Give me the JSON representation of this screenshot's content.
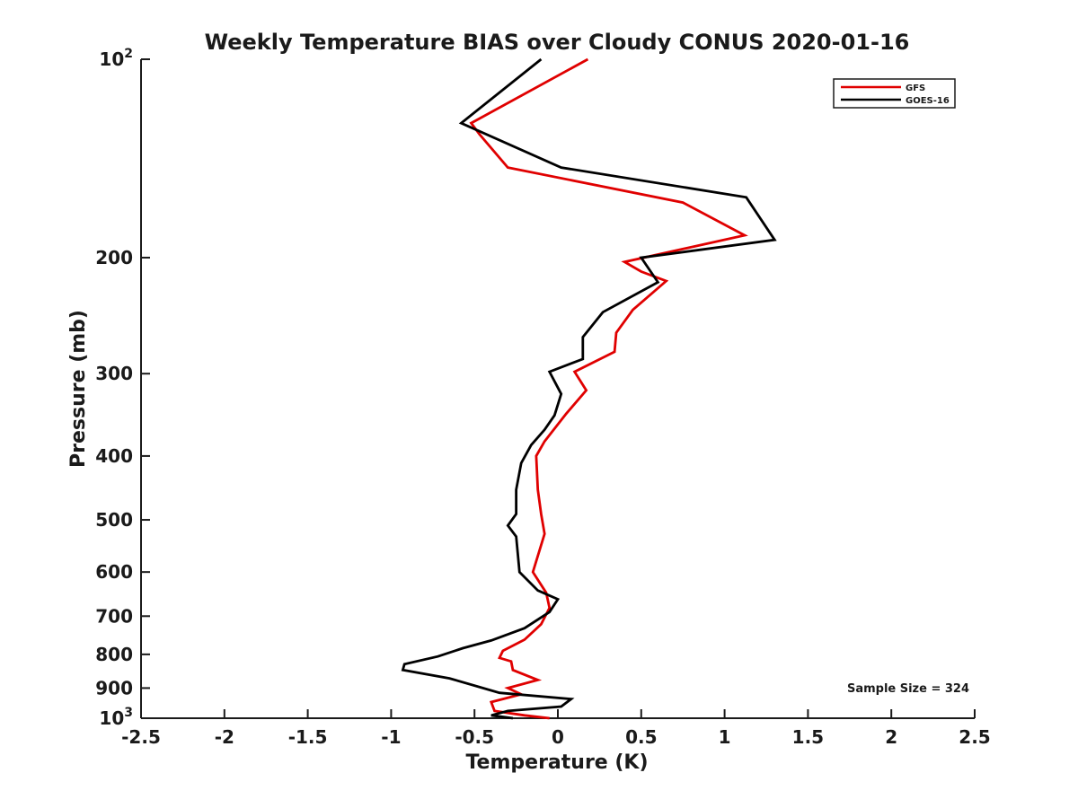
{
  "chart_data": {
    "type": "line",
    "title": "Weekly Temperature BIAS over Cloudy CONUS 2020-01-16",
    "xlabel": "Temperature (K)",
    "ylabel": "Pressure (mb)",
    "xlim": [
      -2.5,
      2.5
    ],
    "ylim": [
      100,
      1000
    ],
    "y_scale": "log",
    "y_reversed": true,
    "x_ticks": [
      -2.5,
      -2,
      -1.5,
      -1,
      -0.5,
      0,
      0.5,
      1,
      1.5,
      2,
      2.5
    ],
    "x_tick_labels": [
      "-2.5",
      "-2",
      "-1.5",
      "-1",
      "-0.5",
      "0",
      "0.5",
      "1",
      "1.5",
      "2",
      "2.5"
    ],
    "y_ticks": [
      {
        "value": 100,
        "label": "10",
        "sup": "2"
      },
      {
        "value": 200,
        "label": "200",
        "sup": ""
      },
      {
        "value": 300,
        "label": "300",
        "sup": ""
      },
      {
        "value": 400,
        "label": "400",
        "sup": ""
      },
      {
        "value": 500,
        "label": "500",
        "sup": ""
      },
      {
        "value": 600,
        "label": "600",
        "sup": ""
      },
      {
        "value": 700,
        "label": "700",
        "sup": ""
      },
      {
        "value": 800,
        "label": "800",
        "sup": ""
      },
      {
        "value": 900,
        "label": "900",
        "sup": ""
      },
      {
        "value": 1000,
        "label": "10",
        "sup": "3"
      }
    ],
    "grid": false,
    "legend_position": "top-right",
    "series": [
      {
        "name": "GFS",
        "color": "#e00000",
        "points": [
          [
            0.18,
            100
          ],
          [
            -0.52,
            125
          ],
          [
            -0.47,
            130
          ],
          [
            -0.3,
            146
          ],
          [
            0.75,
            165
          ],
          [
            1.12,
            185
          ],
          [
            0.4,
            203
          ],
          [
            0.5,
            210
          ],
          [
            0.65,
            217
          ],
          [
            0.45,
            240
          ],
          [
            0.35,
            260
          ],
          [
            0.34,
            278
          ],
          [
            0.1,
            298
          ],
          [
            0.17,
            318
          ],
          [
            0.05,
            345
          ],
          [
            -0.08,
            380
          ],
          [
            -0.13,
            400
          ],
          [
            -0.12,
            450
          ],
          [
            -0.1,
            490
          ],
          [
            -0.08,
            525
          ],
          [
            -0.15,
            600
          ],
          [
            -0.07,
            645
          ],
          [
            -0.05,
            680
          ],
          [
            -0.1,
            720
          ],
          [
            -0.2,
            760
          ],
          [
            -0.33,
            790
          ],
          [
            -0.35,
            810
          ],
          [
            -0.28,
            820
          ],
          [
            -0.27,
            845
          ],
          [
            -0.12,
            875
          ],
          [
            -0.3,
            900
          ],
          [
            -0.22,
            920
          ],
          [
            -0.4,
            945
          ],
          [
            -0.38,
            975
          ],
          [
            -0.2,
            990
          ],
          [
            -0.05,
            1000
          ]
        ]
      },
      {
        "name": "GOES-16",
        "color": "#000000",
        "points": [
          [
            -0.1,
            100
          ],
          [
            -0.58,
            125
          ],
          [
            0.02,
            146
          ],
          [
            1.13,
            162
          ],
          [
            1.3,
            188
          ],
          [
            0.5,
            200
          ],
          [
            0.6,
            218
          ],
          [
            0.27,
            242
          ],
          [
            0.15,
            264
          ],
          [
            0.15,
            285
          ],
          [
            -0.05,
            298
          ],
          [
            0.02,
            322
          ],
          [
            -0.02,
            347
          ],
          [
            -0.08,
            365
          ],
          [
            -0.16,
            385
          ],
          [
            -0.22,
            410
          ],
          [
            -0.25,
            450
          ],
          [
            -0.25,
            490
          ],
          [
            -0.3,
            510
          ],
          [
            -0.25,
            530
          ],
          [
            -0.23,
            600
          ],
          [
            -0.12,
            640
          ],
          [
            0,
            660
          ],
          [
            -0.05,
            690
          ],
          [
            -0.2,
            730
          ],
          [
            -0.4,
            762
          ],
          [
            -0.57,
            783
          ],
          [
            -0.72,
            806
          ],
          [
            -0.92,
            828
          ],
          [
            -0.93,
            845
          ],
          [
            -0.65,
            870
          ],
          [
            -0.35,
            915
          ],
          [
            0.08,
            935
          ],
          [
            0.02,
            960
          ],
          [
            -0.3,
            975
          ],
          [
            -0.4,
            990
          ],
          [
            -0.27,
            1000
          ]
        ]
      }
    ],
    "annotations": [
      {
        "text": "Sample Size = 324",
        "position": "bottom-right"
      }
    ]
  }
}
